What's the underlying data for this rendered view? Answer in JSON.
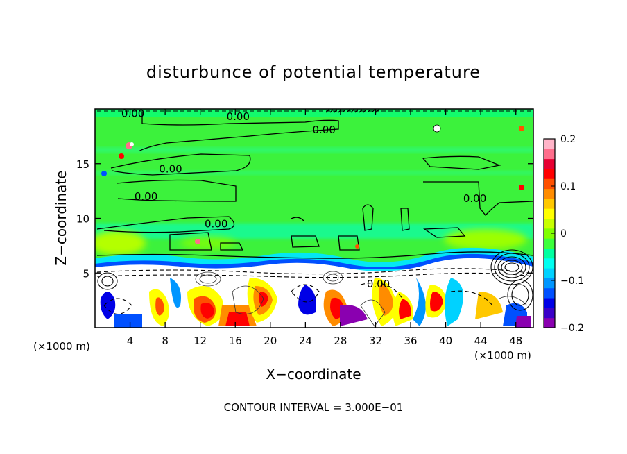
{
  "chart_data": {
    "type": "heatmap",
    "title": "disturbunce of potential temperature",
    "xlabel": "X−coordinate",
    "ylabel": "Z−coordinate",
    "x_unit_left": "(×1000 m)",
    "x_unit_right": "(×1000 m)",
    "footer": "CONTOUR INTERVAL = 3.000E−01",
    "xlim": [
      0,
      50
    ],
    "ylim": [
      0,
      20
    ],
    "x_ticks": [
      4,
      8,
      12,
      16,
      20,
      24,
      28,
      32,
      36,
      40,
      44,
      48
    ],
    "x_tick_labels": [
      "4",
      "8",
      "12",
      "16",
      "20",
      "24",
      "28",
      "32",
      "36",
      "40",
      "44",
      "48"
    ],
    "y_ticks": [
      5,
      10,
      15
    ],
    "y_tick_labels": [
      "5",
      "10",
      "15"
    ],
    "colorbar": {
      "min": -0.2,
      "max": 0.2,
      "ticks": [
        0.2,
        0.1,
        0,
        -0.1,
        -0.2
      ],
      "tick_labels": [
        "0.2",
        "0.1",
        "0",
        "−0.1",
        "−0.2"
      ],
      "colors": [
        "#8a00b0",
        "#3a00c8",
        "#0000e6",
        "#0050ff",
        "#0096ff",
        "#00d2ff",
        "#00fff0",
        "#00ffa0",
        "#3cff3c",
        "#80ff00",
        "#c8ff00",
        "#ffff00",
        "#ffc800",
        "#ff8c00",
        "#ff5000",
        "#ff0000",
        "#e60032",
        "#ff6e8c",
        "#ffb4c8"
      ]
    },
    "contour_labels": [
      {
        "text": "0.00",
        "x": 3.0,
        "z": 19.6
      },
      {
        "text": "0.00",
        "x": 15.0,
        "z": 19.3
      },
      {
        "text": "0.00",
        "x": 24.8,
        "z": 18.1
      },
      {
        "text": "0.00",
        "x": 7.3,
        "z": 14.5
      },
      {
        "text": "0.00",
        "x": 4.5,
        "z": 12.0
      },
      {
        "text": "0.00",
        "x": 12.5,
        "z": 9.5
      },
      {
        "text": "0.00",
        "x": 42.0,
        "z": 11.8
      },
      {
        "text": "0.00",
        "x": 31.0,
        "z": 4.0
      }
    ]
  }
}
